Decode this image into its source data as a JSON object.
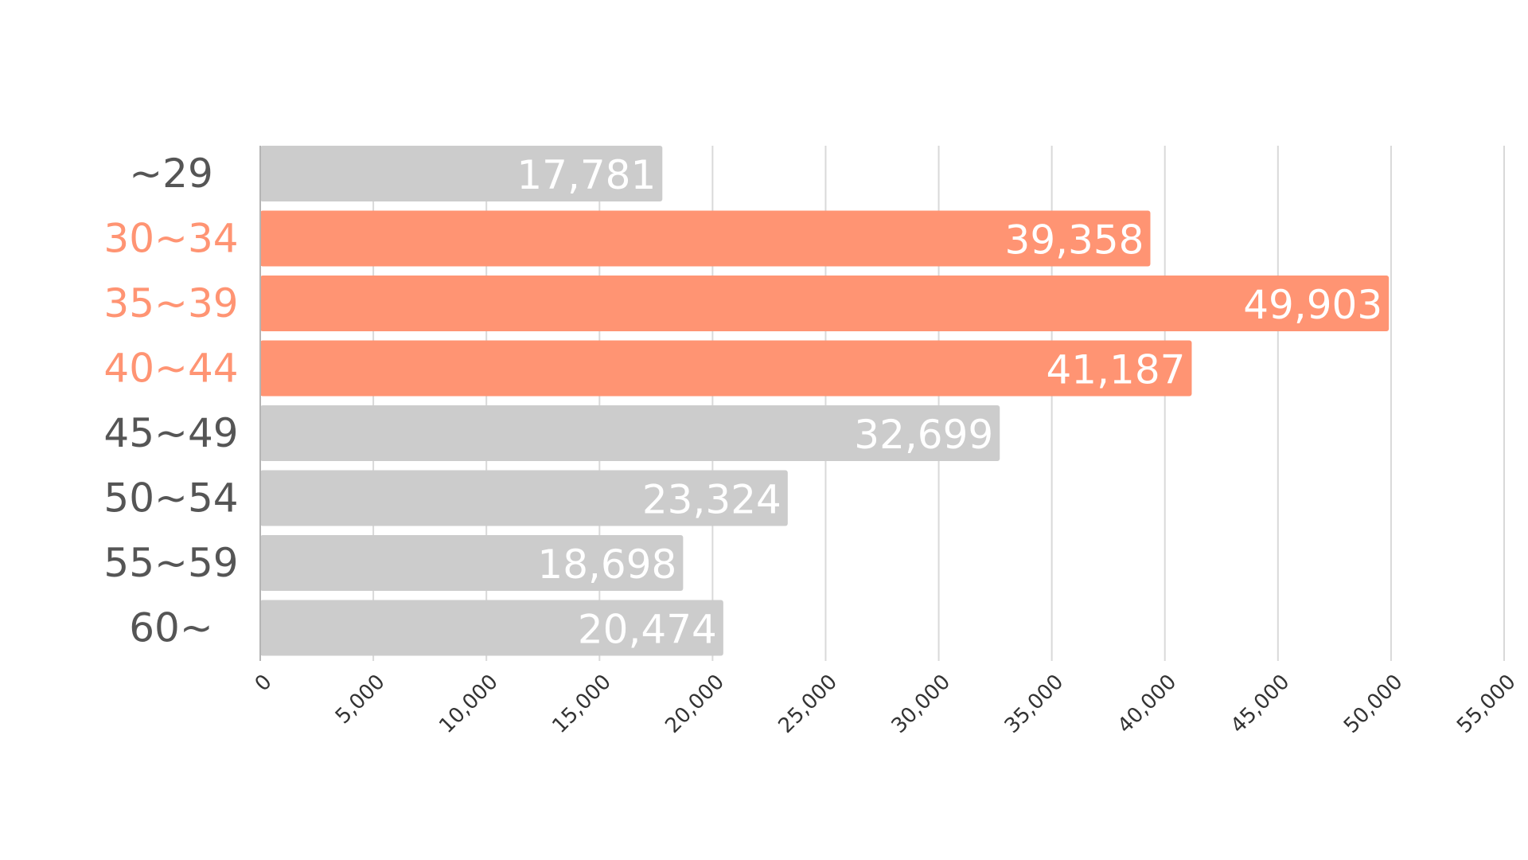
{
  "chart_data": {
    "type": "bar",
    "orientation": "horizontal",
    "categories": [
      "~29",
      "30~34",
      "35~39",
      "40~44",
      "45~49",
      "50~54",
      "55~59",
      "60~"
    ],
    "values": [
      17781,
      39358,
      49903,
      41187,
      32699,
      23324,
      18698,
      20474
    ],
    "value_labels": [
      "17,781",
      "39,358",
      "49,903",
      "41,187",
      "32,699",
      "23,324",
      "18,698",
      "20,474"
    ],
    "highlighted": [
      false,
      true,
      true,
      true,
      false,
      false,
      false,
      false
    ],
    "xlim": [
      0,
      55000
    ],
    "x_ticks": [
      0,
      5000,
      10000,
      15000,
      20000,
      25000,
      30000,
      35000,
      40000,
      45000,
      50000,
      55000
    ],
    "x_tick_labels": [
      "0",
      "5,000",
      "10,000",
      "15,000",
      "20,000",
      "25,000",
      "30,000",
      "35,000",
      "40,000",
      "45,000",
      "50,000",
      "55,000"
    ],
    "grid": true,
    "colors": {
      "default_bar": "#cccccc",
      "highlight_bar": "#ff9473",
      "default_label": "#555555",
      "highlight_label": "#ff9473"
    }
  }
}
